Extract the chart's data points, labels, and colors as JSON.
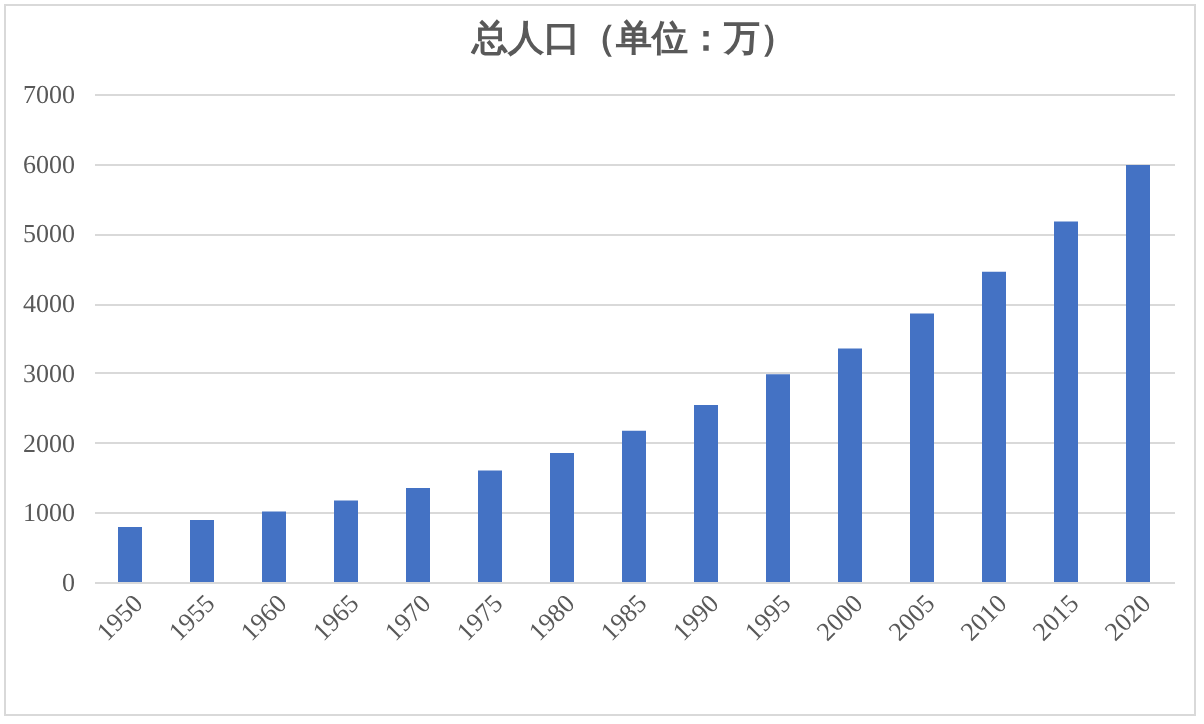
{
  "chart_data": {
    "type": "bar",
    "title": "总人口（单位：万）",
    "categories": [
      "1950",
      "1955",
      "1960",
      "1965",
      "1970",
      "1975",
      "1980",
      "1985",
      "1990",
      "1995",
      "2000",
      "2005",
      "2010",
      "2015",
      "2020"
    ],
    "values": [
      790,
      890,
      1010,
      1170,
      1350,
      1600,
      1850,
      2170,
      2540,
      2980,
      3350,
      3850,
      4450,
      5170,
      5980
    ],
    "color": "#4472c4",
    "ylim": [
      0,
      7000
    ],
    "yticks": [
      0,
      1000,
      2000,
      3000,
      4000,
      5000,
      6000,
      7000
    ],
    "grid": "y"
  }
}
